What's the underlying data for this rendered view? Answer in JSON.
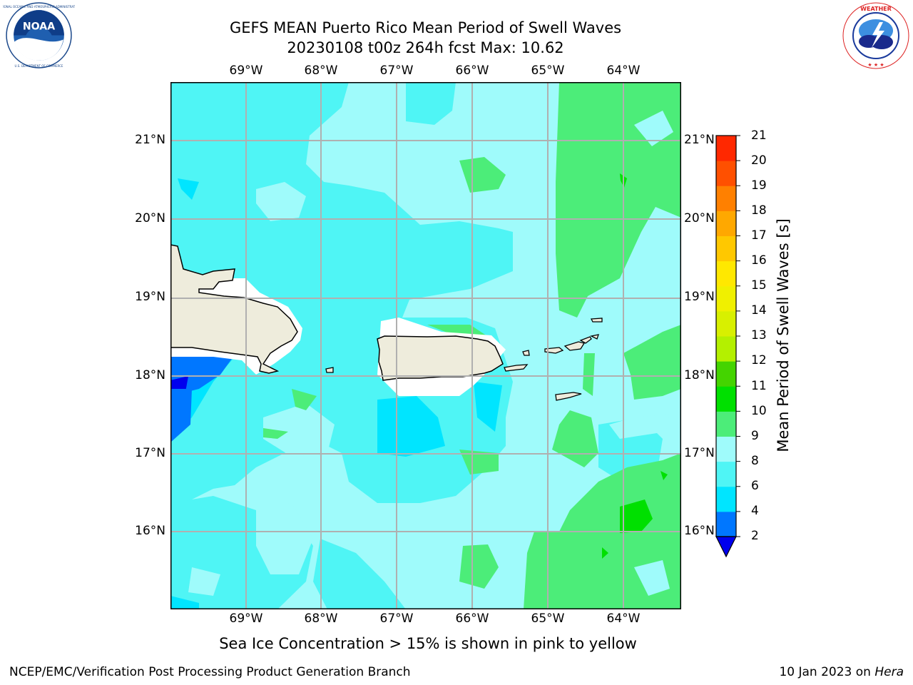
{
  "title": {
    "line1": "GEFS MEAN Puerto Rico Mean Period of Swell Waves",
    "line2": "20230108 t00z 264h fcst   Max: 10.62"
  },
  "logos": {
    "left": {
      "icon": "noaa-logo",
      "text": "NOAA",
      "ring_text": "NATIONAL OCEANIC AND ATMOSPHERIC ADMINISTRATION · U.S. DEPARTMENT OF COMMERCE"
    },
    "right": {
      "icon": "nws-logo",
      "ring_text": "NATIONAL WEATHER SERVICE"
    }
  },
  "map": {
    "lon_labels": [
      "69°W",
      "68°W",
      "67°W",
      "66°W",
      "65°W",
      "64°W"
    ],
    "lat_labels": [
      "21°N",
      "20°N",
      "19°N",
      "18°N",
      "17°N",
      "16°N"
    ],
    "lon_range": [
      -70.0,
      -63.25
    ],
    "lat_range": [
      15.0,
      21.75
    ],
    "gridlines": true,
    "land_color": "#eeecdc",
    "background_level_color": "#9ffbfb"
  },
  "colorbar": {
    "label": "Mean Period of Swell Waves [s]",
    "ticks": [
      "21",
      "20",
      "19",
      "18",
      "17",
      "16",
      "15",
      "14",
      "13",
      "12",
      "11",
      "10",
      "9",
      "8",
      "6",
      "4",
      "2"
    ],
    "levels": [
      2,
      4,
      6,
      8,
      9,
      10,
      11,
      12,
      13,
      14,
      15,
      16,
      17,
      18,
      19,
      20,
      21
    ],
    "colors": [
      "#0077ff",
      "#00e5ff",
      "#4ff5f5",
      "#9ffbfb",
      "#4ced79",
      "#00e000",
      "#44d400",
      "#b4f000",
      "#d8f000",
      "#f0f000",
      "#ffe800",
      "#ffc800",
      "#ffa800",
      "#ff8000",
      "#ff5000",
      "#ff2800"
    ],
    "extend_color": "#0000ee"
  },
  "note": "Sea Ice Concentration > 15% is shown in pink to yellow",
  "footer": {
    "left": "NCEP/EMC/Verification Post Processing Product Generation Branch",
    "right_prefix": "10 Jan 2023 on ",
    "right_host": "Hera"
  }
}
